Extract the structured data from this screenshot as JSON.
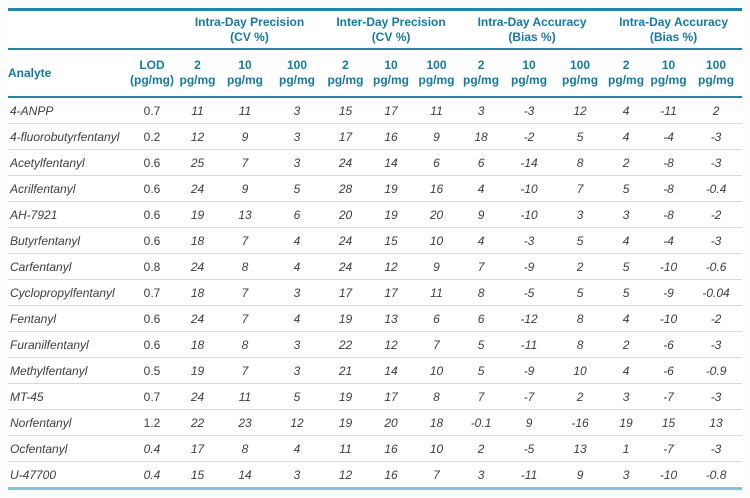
{
  "colors": {
    "accent": "#1579a2",
    "line_strong": "#2484ab",
    "line_bottom": "#85c3d8",
    "row_divider": "#d9d9d9",
    "body_text": "#3d3d3d"
  },
  "table": {
    "groups": [
      {
        "title": "Intra-Day Precision",
        "subtitle": "(CV %)"
      },
      {
        "title": "Inter-Day Precision",
        "subtitle": "(CV %)"
      },
      {
        "title": "Intra-Day Accuracy",
        "subtitle": "(Bias %)"
      },
      {
        "title": "Intra-Day Accuracy",
        "subtitle": "(Bias %)"
      }
    ],
    "headers": {
      "analyte": "Analyte",
      "lod_line1": "LOD",
      "lod_line2": "(pg/mg)",
      "concentrations": [
        "2",
        "10",
        "100"
      ],
      "unit": "pg/mg"
    },
    "rows": [
      {
        "analyte": "4-ANPP",
        "lod": "0.7",
        "values": [
          "11",
          "11",
          "3",
          "15",
          "17",
          "11",
          "3",
          "-3",
          "12",
          "4",
          "-11",
          "2"
        ]
      },
      {
        "analyte": "4-fluorobutyrfentanyl",
        "lod": "0.2",
        "values": [
          "12",
          "9",
          "3",
          "17",
          "16",
          "9",
          "18",
          "-2",
          "5",
          "4",
          "-4",
          "-3"
        ]
      },
      {
        "analyte": "Acetylfentanyl",
        "lod": "0.6",
        "values": [
          "25",
          "7",
          "3",
          "24",
          "14",
          "6",
          "6",
          "-14",
          "8",
          "2",
          "-8",
          "-3"
        ]
      },
      {
        "analyte": "Acrilfentanyl",
        "lod": "0.6",
        "values": [
          "24",
          "9",
          "5",
          "28",
          "19",
          "16",
          "4",
          "-10",
          "7",
          "5",
          "-8",
          "-0.4"
        ]
      },
      {
        "analyte": "AH-7921",
        "lod": "0.6",
        "values": [
          "19",
          "13",
          "6",
          "20",
          "19",
          "20",
          "9",
          "-10",
          "3",
          "3",
          "-8",
          "-2"
        ]
      },
      {
        "analyte": "Butyrfentanyl",
        "lod": "0.6",
        "values": [
          "18",
          "7",
          "4",
          "24",
          "15",
          "10",
          "4",
          "-3",
          "5",
          "4",
          "-4",
          "-3"
        ]
      },
      {
        "analyte": "Carfentanyl",
        "lod": "0.8",
        "values": [
          "24",
          "8",
          "4",
          "24",
          "12",
          "9",
          "7",
          "-9",
          "2",
          "5",
          "-10",
          "-0.6"
        ]
      },
      {
        "analyte": "Cyclopropylfentanyl",
        "lod": "0.7",
        "values": [
          "18",
          "7",
          "3",
          "17",
          "17",
          "11",
          "8",
          "-5",
          "5",
          "5",
          "-9",
          "-0.04"
        ]
      },
      {
        "analyte": "Fentanyl",
        "lod": "0.6",
        "values": [
          "24",
          "7",
          "4",
          "19",
          "13",
          "6",
          "6",
          "-12",
          "8",
          "4",
          "-10",
          "-2"
        ]
      },
      {
        "analyte": "Furanilfentanyl",
        "lod": "0.6",
        "values": [
          "18",
          "8",
          "3",
          "22",
          "12",
          "7",
          "5",
          "-11",
          "8",
          "2",
          "-6",
          "-3"
        ]
      },
      {
        "analyte": "Methylfentanyl",
        "lod": "0.5",
        "values": [
          "19",
          "7",
          "3",
          "21",
          "14",
          "10",
          "5",
          "-9",
          "10",
          "4",
          "-6",
          "-0.9"
        ]
      },
      {
        "analyte": "MT-45",
        "lod": "0.7",
        "values": [
          "24",
          "11",
          "5",
          "19",
          "17",
          "8",
          "7",
          "-7",
          "2",
          "3",
          "-7",
          "-3"
        ]
      },
      {
        "analyte": "Norfentanyl",
        "lod": "1.2",
        "values": [
          "22",
          "23",
          "12",
          "19",
          "20",
          "18",
          "-0.1",
          "9",
          "-16",
          "19",
          "15",
          "13"
        ]
      },
      {
        "analyte": "Ocfentanyl",
        "lod": "0.4",
        "values": [
          "17",
          "8",
          "4",
          "11",
          "16",
          "10",
          "2",
          "-5",
          "13",
          "1",
          "-7",
          "-3"
        ]
      },
      {
        "analyte": "U-47700",
        "lod": "0.4",
        "values": [
          "15",
          "14",
          "3",
          "12",
          "16",
          "7",
          "3",
          "-11",
          "9",
          "3",
          "-10",
          "-0.8"
        ]
      }
    ]
  },
  "chart_data": {
    "type": "table",
    "title": "",
    "column_groups": [
      "Intra-Day Precision (CV %)",
      "Inter-Day Precision (CV %)",
      "Intra-Day Accuracy (Bias %)",
      "Intra-Day Accuracy (Bias %)"
    ],
    "columns": [
      "Analyte",
      "LOD (pg/mg)",
      "2 pg/mg",
      "10 pg/mg",
      "100 pg/mg",
      "2 pg/mg",
      "10 pg/mg",
      "100 pg/mg",
      "2 pg/mg",
      "10 pg/mg",
      "100 pg/mg",
      "2 pg/mg",
      "10 pg/mg",
      "100 pg/mg"
    ]
  }
}
